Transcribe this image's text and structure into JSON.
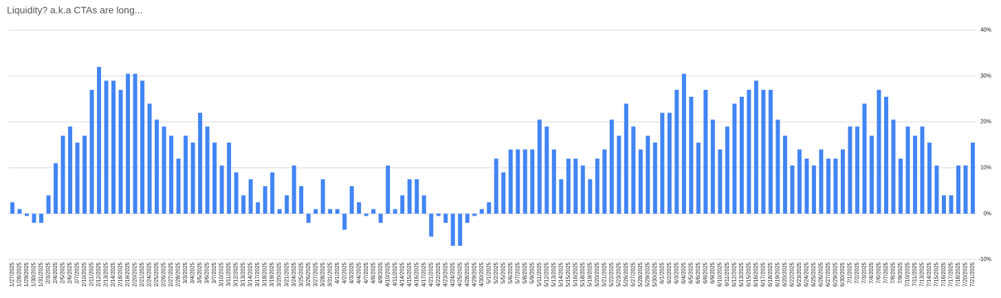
{
  "chart_data": {
    "type": "bar",
    "title": "Liquidity? a.k.a CTAs are long...",
    "categories": [
      "1/27/2025",
      "1/28/2025",
      "1/29/2025",
      "1/30/2025",
      "1/31/2025",
      "2/3/2025",
      "2/4/2025",
      "2/5/2025",
      "2/6/2025",
      "2/7/2025",
      "2/10/2025",
      "2/11/2025",
      "2/12/2025",
      "2/13/2025",
      "2/14/2025",
      "2/18/2025",
      "2/19/2025",
      "2/20/2025",
      "2/21/2025",
      "2/24/2025",
      "2/25/2025",
      "2/26/2025",
      "2/27/2025",
      "2/28/2025",
      "3/3/2025",
      "3/4/2025",
      "3/5/2025",
      "3/6/2025",
      "3/7/2025",
      "3/10/2025",
      "3/11/2025",
      "3/12/2025",
      "3/13/2025",
      "3/14/2025",
      "3/17/2025",
      "3/18/2025",
      "3/19/2025",
      "3/20/2025",
      "3/21/2025",
      "3/24/2025",
      "3/25/2025",
      "3/26/2025",
      "3/27/2025",
      "3/28/2025",
      "3/31/2025",
      "4/1/2025",
      "4/2/2025",
      "4/3/2025",
      "4/4/2025",
      "4/7/2025",
      "4/8/2025",
      "4/9/2025",
      "4/10/2025",
      "4/11/2025",
      "4/14/2025",
      "4/15/2025",
      "4/16/2025",
      "4/17/2025",
      "4/21/2025",
      "4/22/2025",
      "4/23/2025",
      "4/24/2025",
      "4/25/2025",
      "4/28/2025",
      "4/29/2025",
      "4/30/2025",
      "5/1/2025",
      "5/2/2025",
      "5/5/2025",
      "5/6/2025",
      "5/7/2025",
      "5/8/2025",
      "5/9/2025",
      "5/11/2025",
      "5/12/2025",
      "5/13/2025",
      "5/14/2025",
      "5/15/2025",
      "5/16/2025",
      "5/18/2025",
      "5/19/2025",
      "5/20/2025",
      "5/21/2025",
      "5/22/2025",
      "5/23/2025",
      "5/26/2025",
      "5/27/2025",
      "5/28/2025",
      "5/29/2025",
      "5/30/2025",
      "6/1/2025",
      "6/2/2025",
      "6/3/2025",
      "6/4/2025",
      "6/5/2025",
      "6/6/2025",
      "6/8/2025",
      "6/9/2025",
      "6/10/2025",
      "6/11/2025",
      "6/12/2025",
      "6/13/2025",
      "6/15/2025",
      "6/16/2025",
      "6/17/2025",
      "6/18/2025",
      "6/19/2025",
      "6/20/2025",
      "6/22/2025",
      "6/23/2025",
      "6/24/2025",
      "6/25/2025",
      "6/26/2025",
      "6/27/2025",
      "6/29/2025",
      "6/30/2025",
      "7/1/2025",
      "7/2/2025",
      "7/3/2025",
      "7/4/2025",
      "7/6/2025",
      "7/7/2025",
      "7/8/2025",
      "7/9/2025",
      "7/10/2025",
      "7/11/2025",
      "7/13/2025",
      "7/14/2025",
      "7/15/2025",
      "7/16/2025",
      "7/17/2025",
      "7/18/2025",
      "7/20/2025",
      "7/21/2025"
    ],
    "values": [
      2.5,
      1,
      -0.5,
      -2,
      -2,
      4,
      11,
      17,
      19,
      15.5,
      17,
      27,
      32,
      29,
      29,
      27,
      30.5,
      30.5,
      29,
      24,
      20.5,
      19,
      17,
      12,
      17,
      15.5,
      22,
      19,
      15.5,
      10.5,
      15.5,
      9,
      4,
      7.5,
      2.5,
      6,
      9,
      1,
      4,
      10.5,
      6,
      -2,
      1,
      7.5,
      1,
      1,
      -3.5,
      6,
      2.5,
      -0.5,
      1,
      -2,
      10.5,
      1,
      4,
      7.5,
      7.5,
      4,
      -5,
      -0.5,
      -2,
      -7,
      -7,
      -2,
      -0.5,
      1,
      2.5,
      12,
      9,
      14,
      14,
      14,
      14,
      20.5,
      19,
      14,
      7.5,
      12,
      12,
      10.5,
      7.5,
      12,
      14,
      20.5,
      17,
      24,
      19,
      14,
      17,
      15.5,
      22,
      22,
      27,
      30.5,
      25.5,
      15.5,
      27,
      20.5,
      14,
      19,
      24,
      25.5,
      27,
      29,
      27,
      27,
      20.5,
      17,
      10.5,
      14,
      12,
      10.5,
      14,
      12,
      12,
      14,
      19,
      19,
      24,
      17,
      27,
      25.5,
      20.5,
      12,
      19,
      17,
      19,
      15.5,
      10.5,
      4,
      4,
      10.5,
      10.5,
      15.5
    ],
    "color": "#4285f4",
    "ylim": [
      -10,
      40
    ],
    "yticks": [
      {
        "value": -10,
        "label": "-10%"
      },
      {
        "value": 0,
        "label": "0%"
      },
      {
        "value": 10,
        "label": "10%"
      },
      {
        "value": 20,
        "label": "20%"
      },
      {
        "value": 30,
        "label": "30%"
      },
      {
        "value": 40,
        "label": "40%"
      }
    ],
    "grid": true
  }
}
